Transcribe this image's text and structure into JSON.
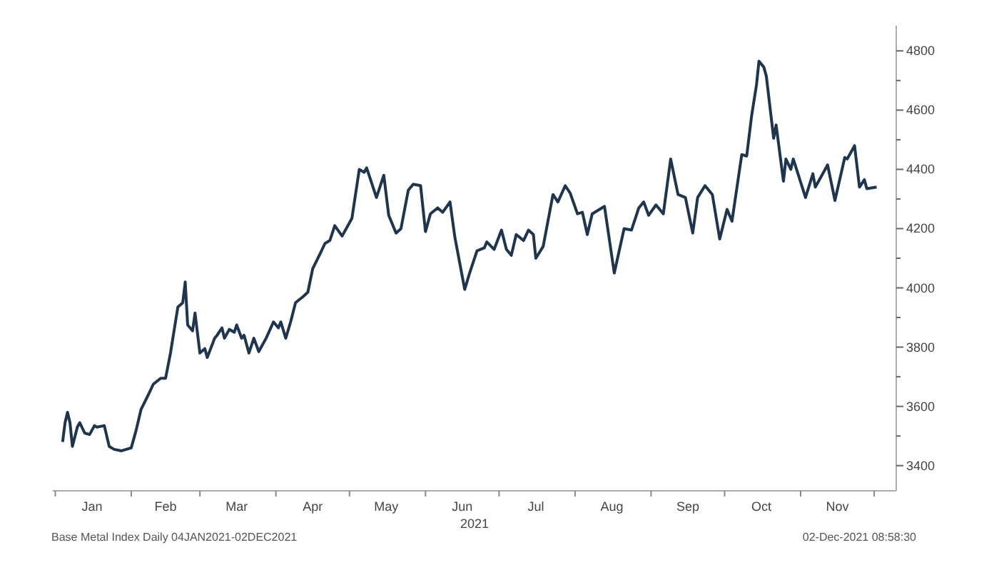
{
  "chart_data": {
    "type": "line",
    "xlabel": "2021",
    "annotations": [
      "Base Metal Index  Daily 04JAN2021-02DEC2021",
      "02-Dec-2021 08:58:30"
    ],
    "x": [
      "2021-01-04",
      "2021-01-05",
      "2021-01-06",
      "2021-01-07",
      "2021-01-08",
      "2021-01-10",
      "2021-01-11",
      "2021-01-13",
      "2021-01-15",
      "2021-01-17",
      "2021-01-18",
      "2021-01-21",
      "2021-01-23",
      "2021-01-25",
      "2021-01-28",
      "2021-01-30",
      "2021-02-01",
      "2021-02-03",
      "2021-02-05",
      "2021-02-08",
      "2021-02-10",
      "2021-02-13",
      "2021-02-15",
      "2021-02-17",
      "2021-02-20",
      "2021-02-22",
      "2021-02-23",
      "2021-02-24",
      "2021-02-26",
      "2021-02-27",
      "2021-03-01",
      "2021-03-03",
      "2021-03-04",
      "2021-03-07",
      "2021-03-08",
      "2021-03-10",
      "2021-03-11",
      "2021-03-13",
      "2021-03-15",
      "2021-03-16",
      "2021-03-18",
      "2021-03-19",
      "2021-03-21",
      "2021-03-23",
      "2021-03-25",
      "2021-03-28",
      "2021-03-31",
      "2021-04-02",
      "2021-04-03",
      "2021-04-05",
      "2021-04-07",
      "2021-04-09",
      "2021-04-12",
      "2021-04-14",
      "2021-04-16",
      "2021-04-19",
      "2021-04-21",
      "2021-04-23",
      "2021-04-25",
      "2021-04-28",
      "2021-05-02",
      "2021-05-05",
      "2021-05-07",
      "2021-05-08",
      "2021-05-12",
      "2021-05-15",
      "2021-05-17",
      "2021-05-20",
      "2021-05-22",
      "2021-05-25",
      "2021-05-27",
      "2021-05-30",
      "2021-06-01",
      "2021-06-03",
      "2021-06-06",
      "2021-06-08",
      "2021-06-11",
      "2021-06-13",
      "2021-06-17",
      "2021-06-19",
      "2021-06-22",
      "2021-06-25",
      "2021-06-26",
      "2021-06-29",
      "2021-07-02",
      "2021-07-04",
      "2021-07-06",
      "2021-07-08",
      "2021-07-11",
      "2021-07-13",
      "2021-07-15",
      "2021-07-16",
      "2021-07-19",
      "2021-07-23",
      "2021-07-25",
      "2021-07-28",
      "2021-07-30",
      "2021-08-02",
      "2021-08-04",
      "2021-08-06",
      "2021-08-08",
      "2021-08-11",
      "2021-08-13",
      "2021-08-17",
      "2021-08-21",
      "2021-08-24",
      "2021-08-27",
      "2021-08-29",
      "2021-08-31",
      "2021-09-03",
      "2021-09-06",
      "2021-09-09",
      "2021-09-12",
      "2021-09-15",
      "2021-09-18",
      "2021-09-20",
      "2021-09-23",
      "2021-09-26",
      "2021-09-29",
      "2021-10-02",
      "2021-10-04",
      "2021-10-08",
      "2021-10-10",
      "2021-10-12",
      "2021-10-14",
      "2021-10-15",
      "2021-10-17",
      "2021-10-18",
      "2021-10-21",
      "2021-10-22",
      "2021-10-25",
      "2021-10-26",
      "2021-10-28",
      "2021-10-29",
      "2021-11-03",
      "2021-11-06",
      "2021-11-07",
      "2021-11-12",
      "2021-11-15",
      "2021-11-19",
      "2021-11-20",
      "2021-11-23",
      "2021-11-25",
      "2021-11-27",
      "2021-11-28",
      "2021-12-02"
    ],
    "series": [
      {
        "color": "#1e3550",
        "values": [
          3480,
          3545,
          3580,
          3545,
          3465,
          3530,
          3545,
          3510,
          3505,
          3535,
          3530,
          3535,
          3465,
          3455,
          3450,
          3455,
          3460,
          3520,
          3590,
          3640,
          3675,
          3695,
          3695,
          3780,
          3935,
          3950,
          4020,
          3875,
          3855,
          3915,
          3780,
          3795,
          3765,
          3830,
          3840,
          3865,
          3830,
          3860,
          3850,
          3875,
          3830,
          3840,
          3780,
          3830,
          3785,
          3830,
          3885,
          3865,
          3885,
          3830,
          3885,
          3950,
          3970,
          3985,
          4065,
          4115,
          4150,
          4160,
          4210,
          4175,
          4235,
          4400,
          4390,
          4405,
          4305,
          4380,
          4245,
          4185,
          4200,
          4330,
          4350,
          4345,
          4190,
          4250,
          4270,
          4255,
          4290,
          4170,
          3995,
          4050,
          4125,
          4135,
          4155,
          4130,
          4195,
          4130,
          4110,
          4180,
          4160,
          4195,
          4180,
          4100,
          4140,
          4315,
          4290,
          4345,
          4320,
          4250,
          4255,
          4180,
          4250,
          4265,
          4275,
          4050,
          4200,
          4195,
          4270,
          4290,
          4245,
          4280,
          4250,
          4435,
          4315,
          4305,
          4185,
          4305,
          4345,
          4315,
          4165,
          4265,
          4225,
          4450,
          4445,
          4580,
          4685,
          4765,
          4745,
          4715,
          4505,
          4550,
          4360,
          4435,
          4400,
          4435,
          4305,
          4385,
          4340,
          4415,
          4295,
          4440,
          4435,
          4480,
          4340,
          4365,
          4335,
          4340
        ]
      }
    ],
    "ylim": [
      3315,
      4885
    ],
    "yticks": [
      3400,
      {
        "value": 3500,
        "label": null
      },
      3600,
      {
        "value": 3700,
        "label": null
      },
      3800,
      {
        "value": 3900,
        "label": null
      },
      4000,
      {
        "value": 4100,
        "label": null
      },
      4200,
      {
        "value": 4300,
        "label": null
      },
      4400,
      {
        "value": 4500,
        "label": null
      },
      4600,
      {
        "value": 4700,
        "label": null
      },
      4800
    ],
    "xlim": [
      "2020-12-31",
      "2021-12-10"
    ],
    "xticks": [
      {
        "value": "2021-01-01",
        "label": null
      },
      {
        "value": "2021-01-16",
        "label": "Jan"
      },
      {
        "value": "2021-02-01",
        "label": null
      },
      {
        "value": "2021-02-15",
        "label": "Feb"
      },
      {
        "value": "2021-03-01",
        "label": null
      },
      {
        "value": "2021-03-16",
        "label": "Mar"
      },
      {
        "value": "2021-04-01",
        "label": null
      },
      {
        "value": "2021-04-16",
        "label": "Apr"
      },
      {
        "value": "2021-05-01",
        "label": null
      },
      {
        "value": "2021-05-16",
        "label": "May"
      },
      {
        "value": "2021-06-01",
        "label": null
      },
      {
        "value": "2021-06-16",
        "label": "Jun"
      },
      {
        "value": "2021-07-01",
        "label": null
      },
      {
        "value": "2021-07-16",
        "label": "Jul"
      },
      {
        "value": "2021-08-01",
        "label": null
      },
      {
        "value": "2021-08-16",
        "label": "Aug"
      },
      {
        "value": "2021-09-01",
        "label": null
      },
      {
        "value": "2021-09-16",
        "label": "Sep"
      },
      {
        "value": "2021-10-01",
        "label": null
      },
      {
        "value": "2021-10-16",
        "label": "Oct"
      },
      {
        "value": "2021-11-01",
        "label": null
      },
      {
        "value": "2021-11-16",
        "label": "Nov"
      },
      {
        "value": "2021-12-01",
        "label": null
      }
    ],
    "grid": false,
    "legend": false,
    "marker": "none",
    "line_style": "solid"
  }
}
